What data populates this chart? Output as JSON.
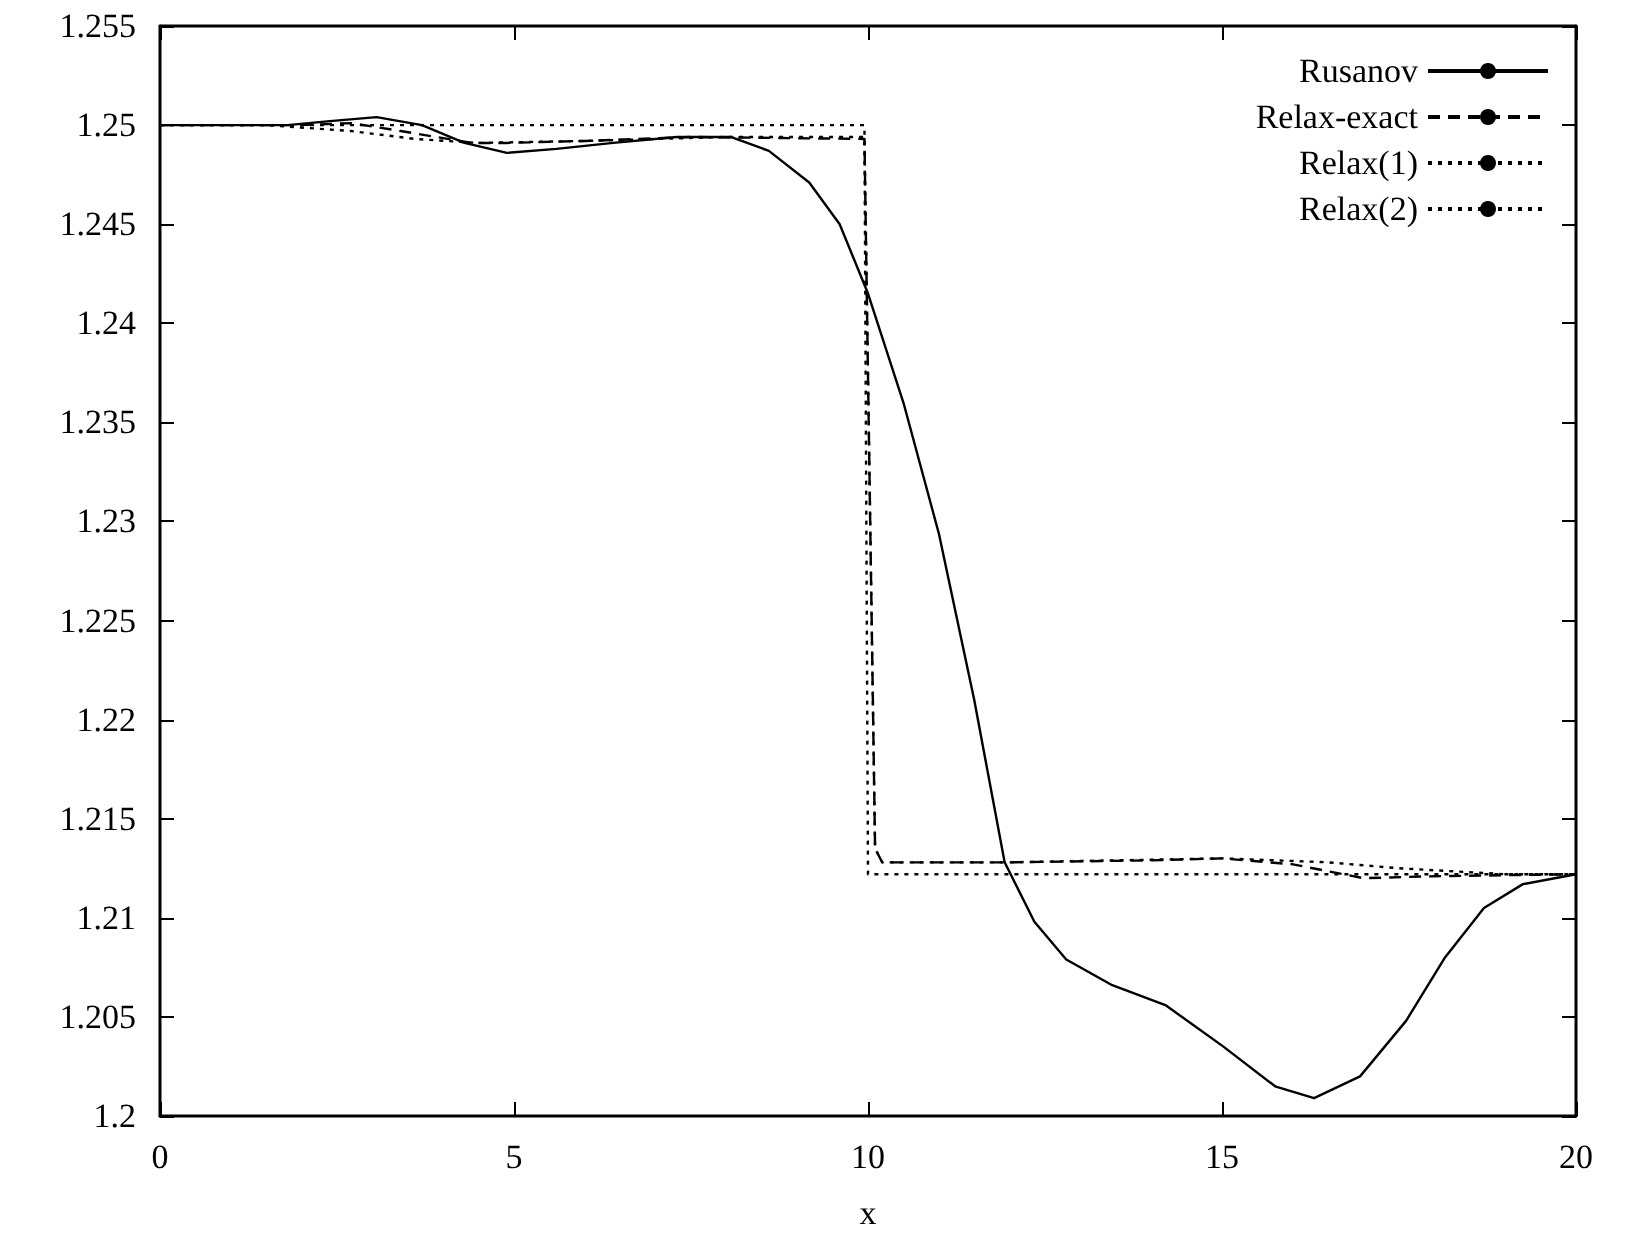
{
  "chart_data": {
    "type": "line",
    "xlabel": "x",
    "xlim": [
      0,
      20
    ],
    "xticks": [
      0,
      5,
      10,
      15,
      20
    ],
    "ylim": [
      1.2,
      1.255
    ],
    "yticks": [
      1.2,
      1.205,
      1.21,
      1.215,
      1.22,
      1.225,
      1.23,
      1.235,
      1.24,
      1.245,
      1.25,
      1.255
    ],
    "grid": false,
    "legend": "top right",
    "marker": "none",
    "series": [
      {
        "name": "Rusanov",
        "color": "#000000",
        "line_style": "solid",
        "x": [
          0,
          1,
          1.8,
          2.4,
          3.06,
          3.7,
          4.3,
          4.9,
          5.6,
          6.4,
          7.3,
          8.06,
          8.6,
          9.17,
          9.6,
          10,
          10.5,
          11,
          11.5,
          11.93,
          12.35,
          12.8,
          13.45,
          14.2,
          15.02,
          15.75,
          16.3,
          16.95,
          17.6,
          18.15,
          18.7,
          19.25,
          20
        ],
        "values": [
          1.25,
          1.25,
          1.25,
          1.2502,
          1.2504,
          1.25,
          1.2491,
          1.2486,
          1.2488,
          1.2491,
          1.2494,
          1.2494,
          1.2487,
          1.2471,
          1.245,
          1.2415,
          1.236,
          1.2294,
          1.221,
          1.2128,
          1.2098,
          1.2079,
          1.2066,
          1.2056,
          1.2035,
          1.2015,
          1.2009,
          1.202,
          1.2048,
          1.208,
          1.2105,
          1.2117,
          1.2122
        ]
      },
      {
        "name": "Relax-exact",
        "color": "#000000",
        "line_style": "dashed",
        "x": [
          0,
          2,
          2.7,
          3.4,
          4.4,
          4.9,
          6,
          7.5,
          9.95,
          10.1,
          10.2,
          12,
          14,
          15,
          16,
          17,
          18,
          20
        ],
        "values": [
          1.25,
          1.25,
          1.2501,
          1.2497,
          1.2491,
          1.2491,
          1.2492,
          1.2494,
          1.2493,
          1.2135,
          1.2128,
          1.2128,
          1.2129,
          1.213,
          1.2127,
          1.212,
          1.2121,
          1.2122
        ]
      },
      {
        "name": "Relax(1)",
        "color": "#000000",
        "line_style": "dotted",
        "x": [
          0,
          9.95,
          10,
          20
        ],
        "values": [
          1.25,
          1.25,
          1.2122,
          1.2122
        ]
      },
      {
        "name": "Relax(2)",
        "color": "#000000",
        "line_style": "dotted",
        "x": [
          0,
          1.5,
          2.7,
          3.6,
          4.5,
          6,
          8,
          9.95,
          10.1,
          10.2,
          12,
          15,
          16.5,
          17.5,
          19,
          20
        ],
        "values": [
          1.25,
          1.25,
          1.2497,
          1.2493,
          1.2491,
          1.2492,
          1.2494,
          1.2494,
          1.2135,
          1.2128,
          1.2128,
          1.213,
          1.2128,
          1.2125,
          1.2122,
          1.2122
        ]
      }
    ]
  }
}
